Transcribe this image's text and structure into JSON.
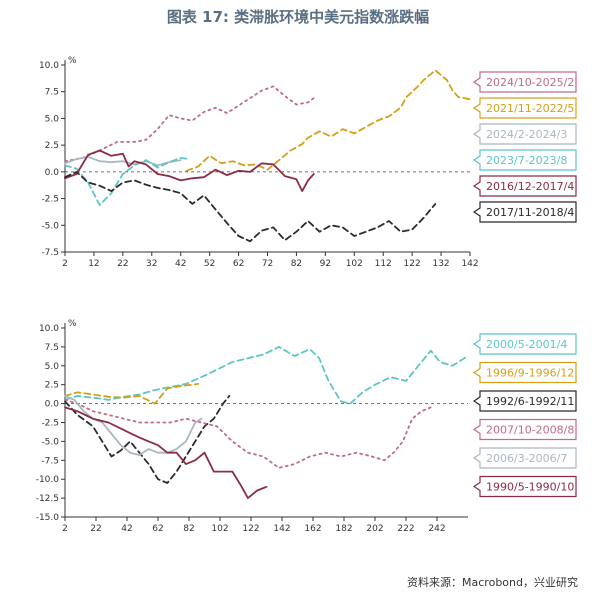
{
  "title": "图表 17: 类滞胀环境中美元指数涨跌幅",
  "source": "资料来源：Macrobond，兴业研究",
  "chart_data": [
    {
      "type": "line",
      "unit_label": "%",
      "xlim": [
        2,
        142
      ],
      "ylim": [
        -7.5,
        10
      ],
      "xticks": [
        2,
        12,
        22,
        32,
        42,
        52,
        62,
        72,
        82,
        92,
        102,
        112,
        122,
        132,
        142
      ],
      "yticks": [
        -7.5,
        -5,
        -2.5,
        0,
        2.5,
        5,
        7.5,
        10
      ],
      "ytick_labels": [
        "-7.5",
        "-5.0",
        "-2.5",
        "0.0",
        "2.5",
        "5.0",
        "7.5",
        "10.0"
      ],
      "zero_line": true,
      "series": [
        {
          "name": "2024/10-2025/2",
          "color": "#c06c84",
          "dash": "2,4",
          "points": [
            [
              2,
              1.0
            ],
            [
              8,
              1.3
            ],
            [
              14,
              2.0
            ],
            [
              20,
              2.8
            ],
            [
              26,
              2.8
            ],
            [
              30,
              3.0
            ],
            [
              34,
              4.0
            ],
            [
              38,
              5.3
            ],
            [
              42,
              5.0
            ],
            [
              46,
              4.8
            ],
            [
              50,
              5.6
            ],
            [
              54,
              6.0
            ],
            [
              58,
              5.5
            ],
            [
              62,
              6.2
            ],
            [
              66,
              6.9
            ],
            [
              70,
              7.6
            ],
            [
              74,
              8.0
            ],
            [
              78,
              7.1
            ],
            [
              82,
              6.3
            ],
            [
              86,
              6.5
            ],
            [
              88,
              6.9
            ]
          ]
        },
        {
          "name": "2021/11-2022/5",
          "color": "#d4a017",
          "dash": "6,4",
          "points": [
            [
              44,
              0.1
            ],
            [
              48,
              0.5
            ],
            [
              52,
              1.5
            ],
            [
              56,
              0.8
            ],
            [
              60,
              1.0
            ],
            [
              64,
              0.6
            ],
            [
              68,
              0.7
            ],
            [
              72,
              0.2
            ],
            [
              76,
              1.1
            ],
            [
              80,
              2.0
            ],
            [
              84,
              2.6
            ],
            [
              86,
              3.2
            ],
            [
              90,
              3.8
            ],
            [
              94,
              3.3
            ],
            [
              98,
              4.0
            ],
            [
              102,
              3.6
            ],
            [
              106,
              4.2
            ],
            [
              110,
              4.8
            ],
            [
              114,
              5.2
            ],
            [
              118,
              6.0
            ],
            [
              120,
              7.0
            ],
            [
              124,
              8.0
            ],
            [
              126,
              8.6
            ],
            [
              130,
              9.5
            ],
            [
              134,
              8.6
            ],
            [
              136,
              7.6
            ],
            [
              138,
              7.0
            ],
            [
              142,
              6.8
            ]
          ]
        },
        {
          "name": "2024/2-2024/3",
          "color": "#a9b7c2",
          "dash": "none",
          "points": [
            [
              2,
              0.8
            ],
            [
              6,
              1.2
            ],
            [
              10,
              1.4
            ],
            [
              14,
              1.0
            ],
            [
              18,
              0.9
            ],
            [
              22,
              1.0
            ],
            [
              26,
              0.7
            ],
            [
              30,
              1.0
            ],
            [
              34,
              0.6
            ],
            [
              38,
              0.9
            ],
            [
              42,
              1.1
            ]
          ]
        },
        {
          "name": "2023/7-2023/8",
          "color": "#5ec4c8",
          "dash": "6,4",
          "points": [
            [
              2,
              0.6
            ],
            [
              6,
              0.3
            ],
            [
              10,
              -1.0
            ],
            [
              14,
              -3.1
            ],
            [
              18,
              -2.0
            ],
            [
              22,
              -0.2
            ],
            [
              26,
              0.6
            ],
            [
              30,
              1.1
            ],
            [
              34,
              0.4
            ],
            [
              38,
              0.9
            ],
            [
              42,
              1.3
            ],
            [
              45,
              1.2
            ]
          ]
        },
        {
          "name": "2016/12-2017/4",
          "color": "#8b2c44",
          "dash": "none",
          "points": [
            [
              2,
              -0.6
            ],
            [
              6,
              -0.2
            ],
            [
              10,
              1.6
            ],
            [
              14,
              2.0
            ],
            [
              18,
              1.5
            ],
            [
              22,
              1.7
            ],
            [
              24,
              0.5
            ],
            [
              26,
              1.0
            ],
            [
              30,
              0.7
            ],
            [
              34,
              -0.2
            ],
            [
              38,
              -0.4
            ],
            [
              42,
              -0.8
            ],
            [
              46,
              -0.6
            ],
            [
              50,
              -0.5
            ],
            [
              54,
              0.2
            ],
            [
              58,
              -0.3
            ],
            [
              62,
              0.1
            ],
            [
              66,
              0.0
            ],
            [
              70,
              0.8
            ],
            [
              74,
              0.7
            ],
            [
              78,
              -0.4
            ],
            [
              82,
              -0.7
            ],
            [
              84,
              -1.8
            ],
            [
              86,
              -0.8
            ],
            [
              88,
              -0.2
            ]
          ]
        },
        {
          "name": "2017/11-2018/4",
          "color": "#2b2b2b",
          "dash": "6,4",
          "points": [
            [
              2,
              -0.5
            ],
            [
              6,
              0.0
            ],
            [
              10,
              -1.0
            ],
            [
              14,
              -1.3
            ],
            [
              18,
              -1.8
            ],
            [
              22,
              -1.0
            ],
            [
              26,
              -0.8
            ],
            [
              30,
              -1.2
            ],
            [
              34,
              -1.5
            ],
            [
              38,
              -1.7
            ],
            [
              42,
              -2.0
            ],
            [
              46,
              -3.0
            ],
            [
              50,
              -2.2
            ],
            [
              54,
              -3.5
            ],
            [
              58,
              -4.8
            ],
            [
              62,
              -6.0
            ],
            [
              66,
              -6.5
            ],
            [
              70,
              -5.5
            ],
            [
              74,
              -5.2
            ],
            [
              78,
              -6.4
            ],
            [
              82,
              -5.6
            ],
            [
              86,
              -4.6
            ],
            [
              90,
              -5.6
            ],
            [
              94,
              -5.0
            ],
            [
              98,
              -5.2
            ],
            [
              102,
              -6.0
            ],
            [
              106,
              -5.6
            ],
            [
              110,
              -5.2
            ],
            [
              114,
              -4.6
            ],
            [
              118,
              -5.6
            ],
            [
              122,
              -5.4
            ],
            [
              126,
              -4.3
            ],
            [
              130,
              -3.0
            ]
          ]
        }
      ]
    },
    {
      "type": "line",
      "unit_label": "%",
      "xlim": [
        2,
        262
      ],
      "ylim": [
        -15,
        10
      ],
      "xticks": [
        2,
        22,
        42,
        62,
        82,
        102,
        122,
        142,
        162,
        182,
        202,
        222,
        242
      ],
      "yticks": [
        -15,
        -12.5,
        -10,
        -7.5,
        -5,
        -2.5,
        0,
        2.5,
        5,
        7.5,
        10
      ],
      "ytick_labels": [
        "-15.0",
        "-12.5",
        "-10.0",
        "-7.5",
        "-5.0",
        "-2.5",
        "0.0",
        "2.5",
        "5.0",
        "7.5",
        "10.0"
      ],
      "zero_line": true,
      "series": [
        {
          "name": "2000/5-2001/4",
          "color": "#5ec4c8",
          "dash": "6,4",
          "points": [
            [
              2,
              0.5
            ],
            [
              10,
              1.0
            ],
            [
              20,
              0.8
            ],
            [
              30,
              0.5
            ],
            [
              40,
              0.9
            ],
            [
              50,
              1.2
            ],
            [
              60,
              1.8
            ],
            [
              70,
              2.2
            ],
            [
              80,
              2.6
            ],
            [
              90,
              3.5
            ],
            [
              100,
              4.5
            ],
            [
              110,
              5.5
            ],
            [
              120,
              6.0
            ],
            [
              130,
              6.5
            ],
            [
              140,
              7.5
            ],
            [
              150,
              6.3
            ],
            [
              160,
              7.2
            ],
            [
              166,
              6.0
            ],
            [
              172,
              3.0
            ],
            [
              180,
              0.3
            ],
            [
              186,
              0.0
            ],
            [
              194,
              1.5
            ],
            [
              202,
              2.5
            ],
            [
              212,
              3.5
            ],
            [
              222,
              3.0
            ],
            [
              230,
              5.0
            ],
            [
              238,
              7.0
            ],
            [
              244,
              5.5
            ],
            [
              252,
              5.0
            ],
            [
              262,
              6.3
            ]
          ]
        },
        {
          "name": "1996/9-1996/12",
          "color": "#d4a017",
          "dash": "6,4",
          "points": [
            [
              2,
              1.0
            ],
            [
              10,
              1.5
            ],
            [
              20,
              1.2
            ],
            [
              30,
              0.9
            ],
            [
              40,
              0.8
            ],
            [
              50,
              1.0
            ],
            [
              60,
              0.0
            ],
            [
              68,
              2.0
            ],
            [
              76,
              2.3
            ],
            [
              84,
              2.5
            ],
            [
              88,
              2.6
            ]
          ]
        },
        {
          "name": "1992/6-1992/11",
          "color": "#2b2b2b",
          "dash": "6,4",
          "points": [
            [
              2,
              0.3
            ],
            [
              10,
              -1.5
            ],
            [
              20,
              -3.0
            ],
            [
              26,
              -5.0
            ],
            [
              32,
              -7.0
            ],
            [
              38,
              -6.2
            ],
            [
              44,
              -5.0
            ],
            [
              50,
              -6.5
            ],
            [
              56,
              -8.0
            ],
            [
              62,
              -10.0
            ],
            [
              68,
              -10.5
            ],
            [
              74,
              -9.0
            ],
            [
              80,
              -7.0
            ],
            [
              86,
              -5.0
            ],
            [
              92,
              -3.0
            ],
            [
              98,
              -2.0
            ],
            [
              104,
              0.0
            ],
            [
              108,
              1.0
            ]
          ]
        },
        {
          "name": "2007/10-2008/8",
          "color": "#c06c84",
          "dash": "2,4",
          "points": [
            [
              2,
              0.5
            ],
            [
              10,
              0.0
            ],
            [
              20,
              -1.0
            ],
            [
              30,
              -1.5
            ],
            [
              40,
              -2.0
            ],
            [
              50,
              -2.5
            ],
            [
              60,
              -2.5
            ],
            [
              70,
              -2.5
            ],
            [
              80,
              -2.0
            ],
            [
              90,
              -2.5
            ],
            [
              100,
              -3.0
            ],
            [
              110,
              -5.0
            ],
            [
              120,
              -6.5
            ],
            [
              130,
              -7.0
            ],
            [
              140,
              -8.5
            ],
            [
              150,
              -8.0
            ],
            [
              160,
              -7.0
            ],
            [
              170,
              -6.5
            ],
            [
              180,
              -7.0
            ],
            [
              190,
              -6.5
            ],
            [
              200,
              -7.0
            ],
            [
              208,
              -7.5
            ],
            [
              214,
              -6.5
            ],
            [
              220,
              -5.0
            ],
            [
              226,
              -2.0
            ],
            [
              232,
              -1.0
            ],
            [
              238,
              -0.5
            ]
          ]
        },
        {
          "name": "2006/3-2006/7",
          "color": "#a9b7c2",
          "dash": "none",
          "points": [
            [
              2,
              1.0
            ],
            [
              8,
              0.5
            ],
            [
              14,
              -1.0
            ],
            [
              20,
              -2.0
            ],
            [
              26,
              -2.5
            ],
            [
              32,
              -4.0
            ],
            [
              38,
              -5.5
            ],
            [
              44,
              -6.5
            ],
            [
              50,
              -6.8
            ],
            [
              56,
              -6.0
            ],
            [
              62,
              -6.5
            ],
            [
              68,
              -6.5
            ],
            [
              74,
              -6.0
            ],
            [
              80,
              -5.0
            ],
            [
              86,
              -2.5
            ],
            [
              90,
              -2.0
            ]
          ]
        },
        {
          "name": "1990/5-1990/10",
          "color": "#8b2c44",
          "dash": "none",
          "points": [
            [
              2,
              -0.5
            ],
            [
              10,
              -1.0
            ],
            [
              20,
              -2.0
            ],
            [
              30,
              -2.5
            ],
            [
              40,
              -3.5
            ],
            [
              50,
              -4.5
            ],
            [
              56,
              -5.0
            ],
            [
              62,
              -5.5
            ],
            [
              68,
              -6.5
            ],
            [
              74,
              -6.5
            ],
            [
              80,
              -8.0
            ],
            [
              86,
              -7.5
            ],
            [
              92,
              -6.5
            ],
            [
              98,
              -9.0
            ],
            [
              104,
              -9.0
            ],
            [
              110,
              -9.0
            ],
            [
              116,
              -11.0
            ],
            [
              120,
              -12.5
            ],
            [
              126,
              -11.5
            ],
            [
              132,
              -11.0
            ]
          ]
        }
      ]
    }
  ]
}
